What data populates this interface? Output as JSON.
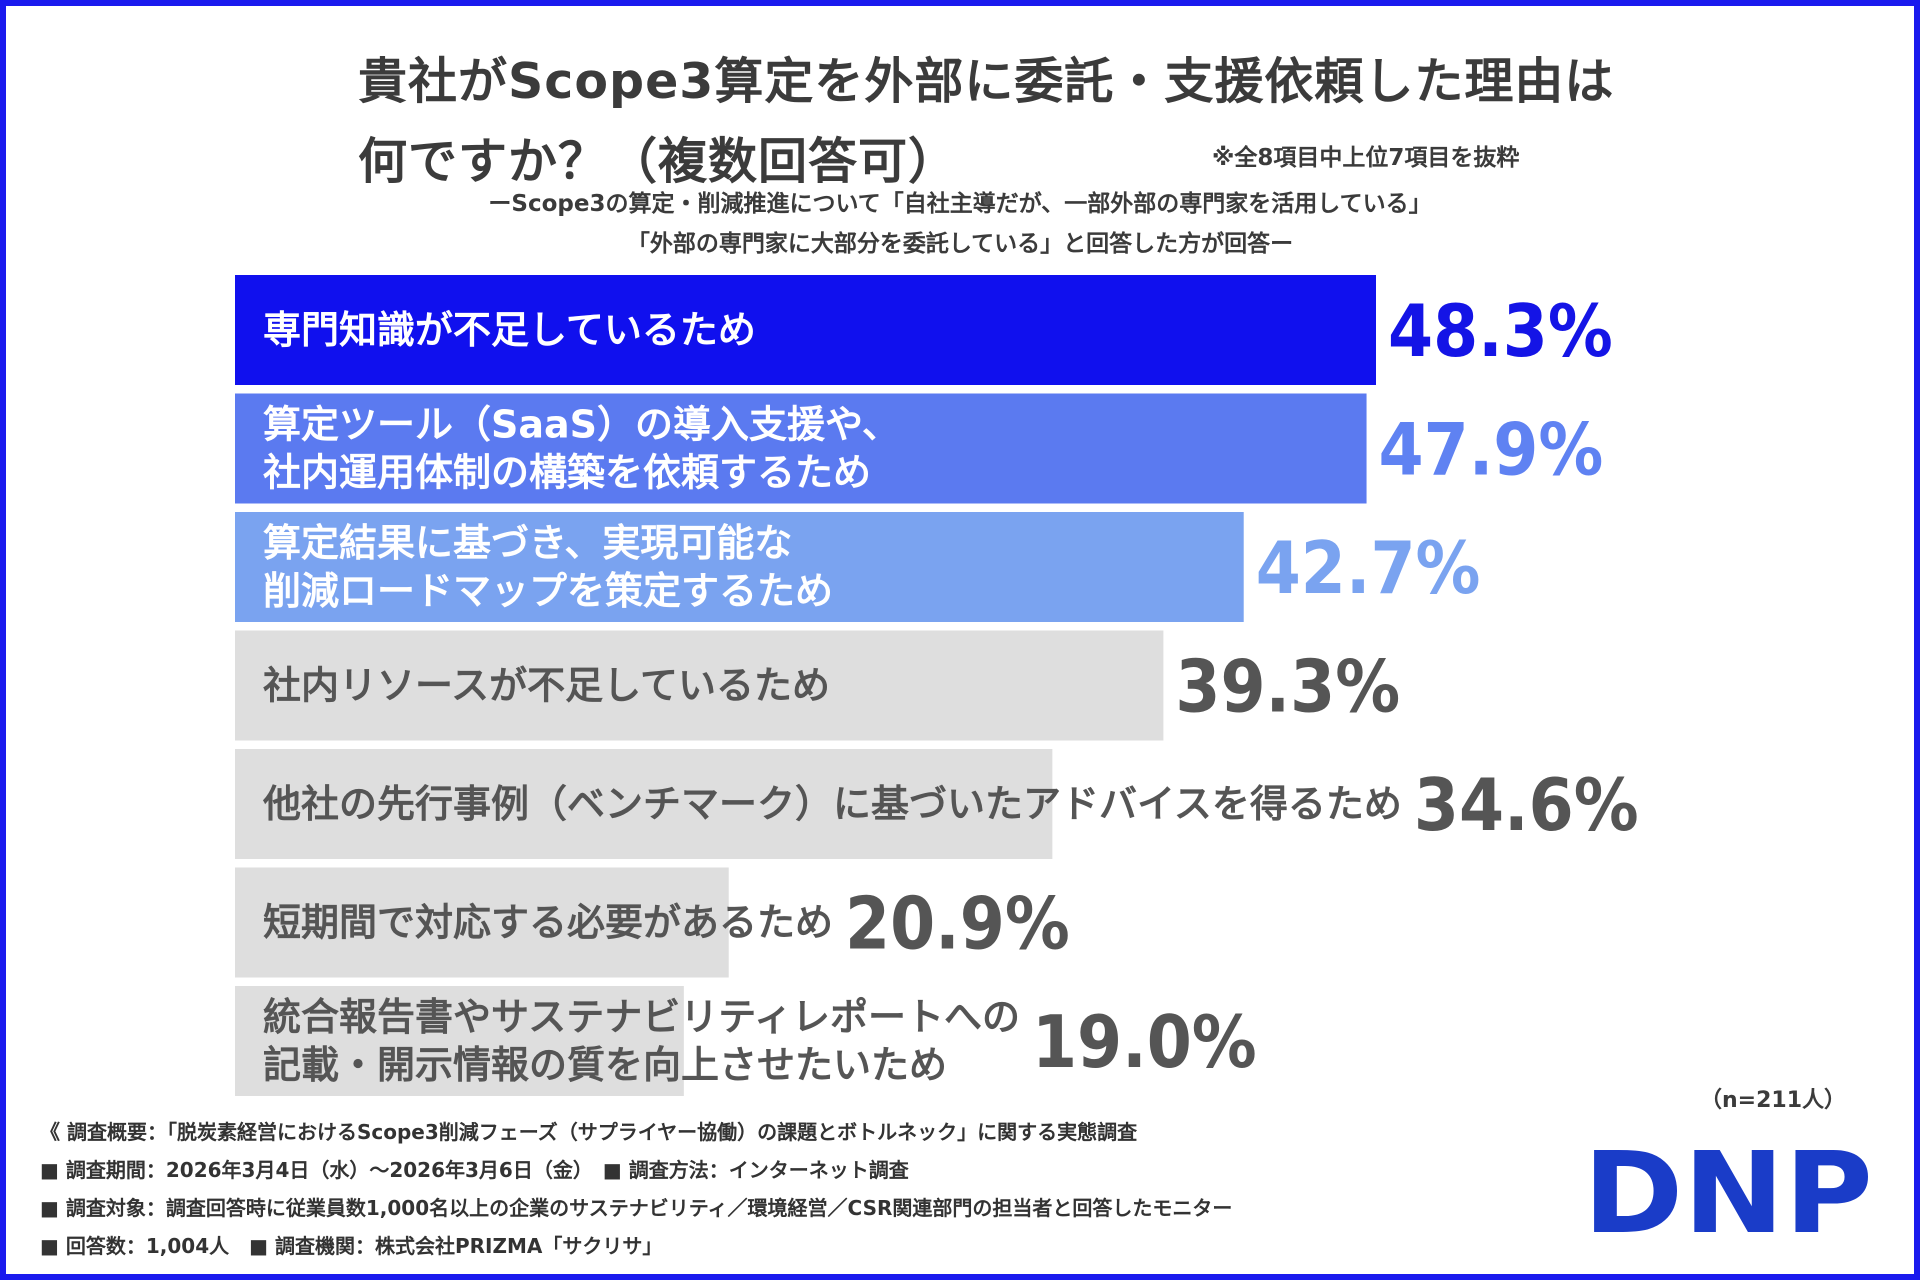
{
  "title": {
    "line1": "貴社がScope3算定を外部に委託・支援依頼した理由は",
    "line2": "何ですか？（複数回答可）"
  },
  "note": "※全8項目中上位7項目を抜粋",
  "subtitle": {
    "line1": "ーScope3の算定・削減推進について「自社主導だが、一部外部の専門家を活用している」",
    "line2": "「外部の専門家に大部分を委託している」と回答した方が回答ー"
  },
  "chart_data": {
    "type": "bar",
    "orientation": "horizontal",
    "unit": "%",
    "xlim": [
      0,
      57
    ],
    "categories": [
      "専門知識が不足しているため",
      "算定ツール（SaaS）の導入支援や、\n社内運用体制の構築を依頼するため",
      "算定結果に基づき、実現可能な\n削減ロードマップを策定するため",
      "社内リソースが不足しているため",
      "他社の先行事例（ベンチマーク）に基づいたアドバイスを得るため",
      "短期間で対応する必要があるため",
      "統合報告書やサステナビリティレポートへの\n記載・開示情報の質を向上させたいため"
    ],
    "values": [
      48.3,
      47.9,
      42.7,
      39.3,
      34.6,
      20.9,
      19.0
    ],
    "value_labels": [
      "48.3%",
      "47.9%",
      "42.7%",
      "39.3%",
      "34.6%",
      "20.9%",
      "19.0%"
    ],
    "bar_colors": [
      "#1010ee",
      "#5b7af0",
      "#7aa3f0",
      "#dedede",
      "#dedede",
      "#dedede",
      "#dedede"
    ],
    "label_colors": [
      "#ffffff",
      "#ffffff",
      "#ffffff",
      "#555555",
      "#555555",
      "#555555",
      "#555555"
    ],
    "value_colors": [
      "#1414e6",
      "#5f82f2",
      "#7aa3f0",
      "#555555",
      "#555555",
      "#555555",
      "#555555"
    ]
  },
  "sample_size": "（n=211人）",
  "survey": {
    "line1": "《 調査概要：「脱炭素経営におけるScope3削減フェーズ（サプライヤー協働）の課題とボトルネック」に関する実態調査",
    "line2": "■ 調査期間：2026年3月4日（水）〜2026年3月6日（金）　■ 調査方法：インターネット調査",
    "line3": "■ 調査対象：調査回答時に従業員数1,000名以上の企業のサステナビリティ／環境経営／CSR関連部門の担当者と回答したモニター",
    "line4": "■ 回答数：1,004人　■ 調査機関：株式会社PRIZMA「サクリサ」"
  },
  "logo": {
    "text": "DNP",
    "color": "#1a3cc8"
  }
}
